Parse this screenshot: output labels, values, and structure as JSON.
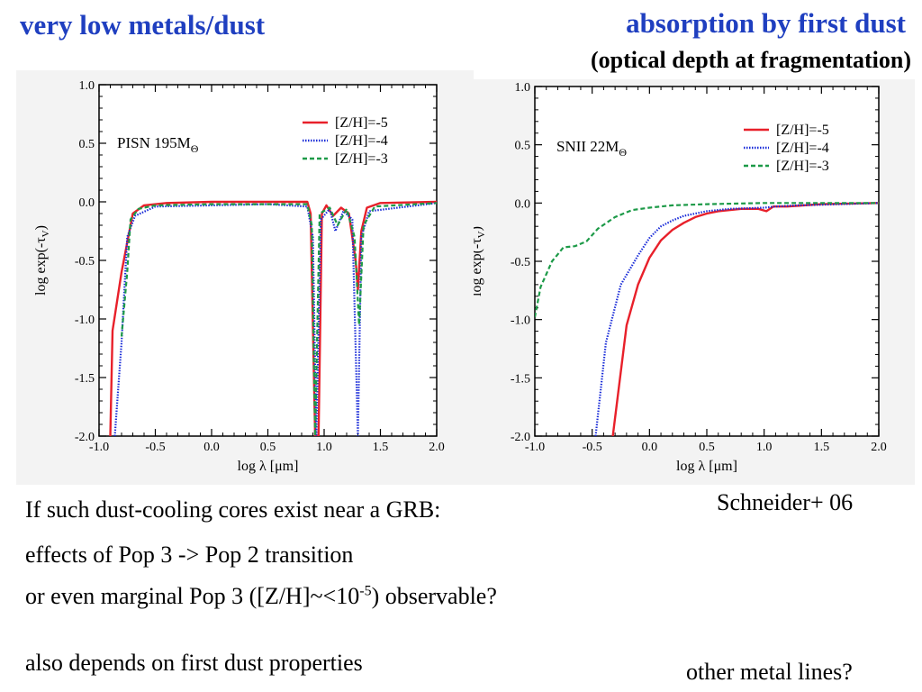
{
  "slide": {
    "title_left": "very low metals/dust",
    "title_right": "absorption by first dust",
    "subtitle": "(optical depth at fragmentation)",
    "citation": "Schneider+ 06",
    "line1": "If such dust-cooling cores exist near a GRB:",
    "line2": "effects of Pop 3 -> Pop 2 transition",
    "line3_a": "or even marginal Pop 3 ([Z/H]~<10",
    "line3_sup": "-5",
    "line3_b": ") observable?",
    "line4": "also depends on first dust properties",
    "line5": "other metal lines?"
  },
  "colors": {
    "title": "#1f3fc0",
    "z5": "#e8202a",
    "z4": "#1a2cd8",
    "z3": "#1d9a48"
  },
  "chart_data": [
    {
      "type": "line",
      "annotation_main": "PISN 195M",
      "annotation_sub": "Θ",
      "xlabel": "log λ [μm]",
      "ylabel": "log exp(-τ",
      "ylabel_sub": "V",
      "xlim": [
        -1.0,
        2.0
      ],
      "ylim": [
        -2.0,
        1.0
      ],
      "xticks": [
        "-1.0",
        "-0.5",
        "0.0",
        "0.5",
        "1.0",
        "1.5",
        "2.0"
      ],
      "yticks": [
        "1.0",
        "0.5",
        "0.0",
        "-0.5",
        "-1.0",
        "-1.5",
        "-2.0"
      ],
      "legend": "top-right",
      "series": [
        {
          "name": "[Z/H]=-5",
          "style": "solid",
          "points": [
            [
              -0.9,
              -2.0
            ],
            [
              -0.88,
              -1.1
            ],
            [
              -0.8,
              -0.6
            ],
            [
              -0.7,
              -0.1
            ],
            [
              -0.6,
              -0.03
            ],
            [
              -0.4,
              -0.01
            ],
            [
              0.0,
              0.0
            ],
            [
              0.5,
              0.0
            ],
            [
              0.85,
              0.0
            ],
            [
              0.88,
              -0.1
            ],
            [
              0.92,
              -2.0
            ],
            [
              0.95,
              -2.0
            ],
            [
              0.98,
              -0.1
            ],
            [
              1.02,
              -0.03
            ],
            [
              1.08,
              -0.12
            ],
            [
              1.15,
              -0.05
            ],
            [
              1.22,
              -0.1
            ],
            [
              1.28,
              -0.5
            ],
            [
              1.3,
              -0.75
            ],
            [
              1.33,
              -0.25
            ],
            [
              1.38,
              -0.05
            ],
            [
              1.5,
              -0.01
            ],
            [
              2.0,
              0.0
            ]
          ]
        },
        {
          "name": "[Z/H]=-4",
          "style": "dotted",
          "points": [
            [
              -0.86,
              -2.0
            ],
            [
              -0.8,
              -1.2
            ],
            [
              -0.75,
              -0.3
            ],
            [
              -0.68,
              -0.12
            ],
            [
              -0.5,
              -0.04
            ],
            [
              0.0,
              -0.03
            ],
            [
              0.5,
              -0.02
            ],
            [
              0.85,
              -0.04
            ],
            [
              0.9,
              -0.3
            ],
            [
              0.93,
              -2.0
            ],
            [
              0.97,
              -0.15
            ],
            [
              1.05,
              -0.06
            ],
            [
              1.1,
              -0.25
            ],
            [
              1.17,
              -0.08
            ],
            [
              1.25,
              -0.15
            ],
            [
              1.3,
              -2.0
            ],
            [
              1.33,
              -0.3
            ],
            [
              1.4,
              -0.08
            ],
            [
              2.0,
              -0.01
            ]
          ]
        },
        {
          "name": "[Z/H]=-3",
          "style": "dashed",
          "points": [
            [
              -0.8,
              -1.15
            ],
            [
              -0.75,
              -0.6
            ],
            [
              -0.72,
              -0.15
            ],
            [
              -0.65,
              -0.06
            ],
            [
              -0.5,
              -0.03
            ],
            [
              0.0,
              -0.02
            ],
            [
              0.85,
              -0.02
            ],
            [
              0.89,
              -0.2
            ],
            [
              0.92,
              -2.0
            ],
            [
              0.96,
              -0.1
            ],
            [
              1.05,
              -0.05
            ],
            [
              1.12,
              -0.2
            ],
            [
              1.2,
              -0.06
            ],
            [
              1.27,
              -0.3
            ],
            [
              1.31,
              -1.05
            ],
            [
              1.35,
              -0.2
            ],
            [
              1.45,
              -0.04
            ],
            [
              2.0,
              -0.01
            ]
          ]
        }
      ]
    },
    {
      "type": "line",
      "annotation_main": "SNII 22M",
      "annotation_sub": "Θ",
      "xlabel": "log λ [μm]",
      "ylabel": "log exp(-τ",
      "ylabel_sub": "V",
      "xlim": [
        -1.0,
        2.0
      ],
      "ylim": [
        -2.0,
        1.0
      ],
      "xticks": [
        "-1.0",
        "-0.5",
        "0.0",
        "0.5",
        "1.0",
        "1.5",
        "2.0"
      ],
      "yticks": [
        "1.0",
        "0.5",
        "0.0",
        "-0.5",
        "-1.0",
        "-1.5",
        "-2.0"
      ],
      "legend": "top-right",
      "series": [
        {
          "name": "[Z/H]=-5",
          "style": "solid",
          "points": [
            [
              -0.32,
              -2.0
            ],
            [
              -0.2,
              -1.05
            ],
            [
              -0.1,
              -0.7
            ],
            [
              0.0,
              -0.47
            ],
            [
              0.1,
              -0.32
            ],
            [
              0.2,
              -0.23
            ],
            [
              0.3,
              -0.17
            ],
            [
              0.4,
              -0.12
            ],
            [
              0.5,
              -0.09
            ],
            [
              0.6,
              -0.07
            ],
            [
              0.8,
              -0.05
            ],
            [
              0.95,
              -0.05
            ],
            [
              1.02,
              -0.07
            ],
            [
              1.08,
              -0.03
            ],
            [
              1.2,
              -0.03
            ],
            [
              1.5,
              -0.01
            ],
            [
              2.0,
              0.0
            ]
          ]
        },
        {
          "name": "[Z/H]=-4",
          "style": "dotted",
          "points": [
            [
              -0.47,
              -2.0
            ],
            [
              -0.38,
              -1.2
            ],
            [
              -0.25,
              -0.7
            ],
            [
              -0.1,
              -0.45
            ],
            [
              0.0,
              -0.3
            ],
            [
              0.1,
              -0.2
            ],
            [
              0.2,
              -0.15
            ],
            [
              0.3,
              -0.11
            ],
            [
              0.5,
              -0.07
            ],
            [
              0.7,
              -0.05
            ],
            [
              1.0,
              -0.04
            ],
            [
              1.1,
              -0.03
            ],
            [
              1.3,
              -0.02
            ],
            [
              2.0,
              0.0
            ]
          ]
        },
        {
          "name": "[Z/H]=-3",
          "style": "dashed",
          "points": [
            [
              -1.0,
              -0.98
            ],
            [
              -0.95,
              -0.72
            ],
            [
              -0.85,
              -0.5
            ],
            [
              -0.75,
              -0.38
            ],
            [
              -0.65,
              -0.37
            ],
            [
              -0.55,
              -0.33
            ],
            [
              -0.45,
              -0.22
            ],
            [
              -0.3,
              -0.12
            ],
            [
              -0.15,
              -0.06
            ],
            [
              0.0,
              -0.04
            ],
            [
              0.2,
              -0.02
            ],
            [
              0.5,
              -0.01
            ],
            [
              1.0,
              0.0
            ],
            [
              2.0,
              0.0
            ]
          ]
        }
      ]
    }
  ]
}
